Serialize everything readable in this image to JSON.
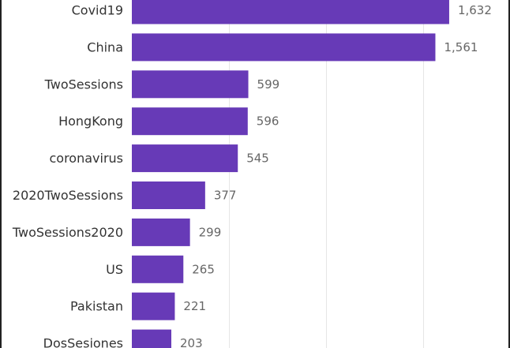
{
  "chart_data": {
    "type": "bar",
    "orientation": "horizontal",
    "categories": [
      "Covid19",
      "China",
      "TwoSessions",
      "HongKong",
      "coronavirus",
      "2020TwoSessions",
      "TwoSessions2020",
      "US",
      "Pakistan",
      "DosSesiones"
    ],
    "values": [
      1632,
      1561,
      599,
      596,
      545,
      377,
      299,
      265,
      221,
      203
    ],
    "value_labels": [
      "1,632",
      "1,561",
      "599",
      "596",
      "545",
      "377",
      "299",
      "265",
      "221",
      "203"
    ],
    "xlim": [
      0,
      2000
    ],
    "grid": true,
    "bar_color": "#673ab7"
  }
}
